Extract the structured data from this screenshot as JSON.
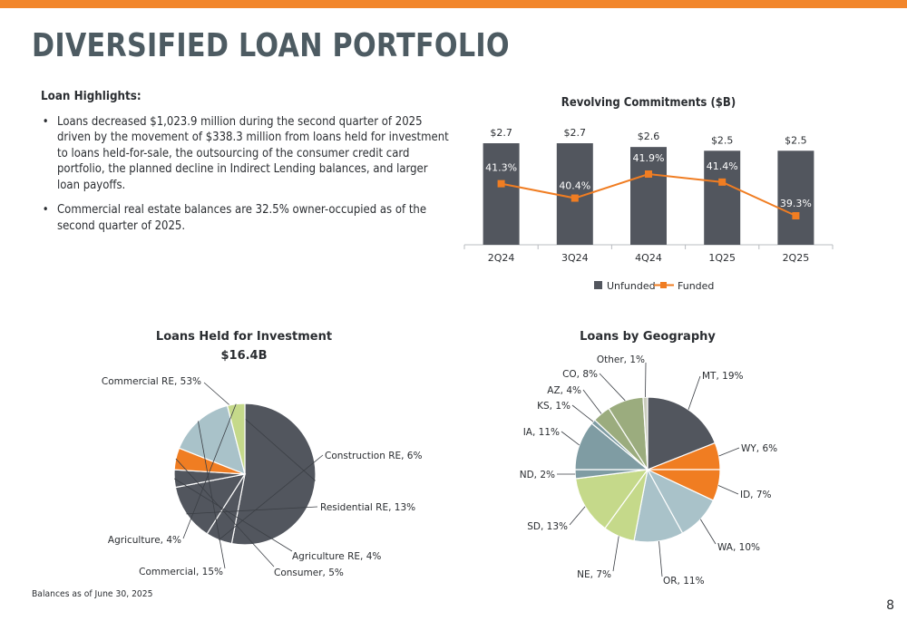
{
  "page": {
    "title": "DIVERSIFIED LOAN PORTFOLIO",
    "page_number": "8",
    "footnote": "Balances as of June 30, 2025"
  },
  "highlights": {
    "title": "Loan Highlights:",
    "bullets": [
      "Loans decreased $1,023.9 million during the second quarter of 2025 driven by the movement of $338.3 million from loans held for investment to loans held-for-sale, the outsourcing of the consumer credit card portfolio, the planned decline in Indirect Lending balances, and larger loan payoffs.",
      "Commercial real estate balances are 32.5% owner-occupied as of the second quarter of 2025."
    ]
  },
  "colors": {
    "accent": "#f2862b",
    "unfunded": "#52565e",
    "funded": "#f07d22"
  },
  "chart_data": [
    {
      "type": "bar",
      "title": "Revolving Commitments ($B)",
      "categories": [
        "2Q24",
        "3Q24",
        "4Q24",
        "1Q25",
        "2Q25"
      ],
      "series": [
        {
          "name": "Unfunded",
          "type": "bar",
          "values": [
            2.7,
            2.7,
            2.6,
            2.5,
            2.5
          ],
          "labels": [
            "$2.7",
            "$2.7",
            "$2.6",
            "$2.5",
            "$2.5"
          ]
        },
        {
          "name": "Funded",
          "type": "line",
          "values": [
            41.3,
            40.4,
            41.9,
            41.4,
            39.3
          ],
          "labels": [
            "41.3%",
            "40.4%",
            "41.9%",
            "41.4%",
            "39.3%"
          ]
        }
      ],
      "legend": "bottom",
      "grid": false
    },
    {
      "type": "pie",
      "title": "Loans Held for Investment",
      "subtitle": "$16.4B",
      "slices": [
        {
          "label": "Commercial RE, 53%",
          "value": 53,
          "color": "#52565e"
        },
        {
          "label": "Construction RE, 6%",
          "value": 6,
          "color": "#52565e"
        },
        {
          "label": "Residential RE, 13%",
          "value": 13,
          "color": "#52565e"
        },
        {
          "label": "Agriculture RE, 4%",
          "value": 4,
          "color": "#52565e"
        },
        {
          "label": "Consumer, 5%",
          "value": 5,
          "color": "#f07d22"
        },
        {
          "label": "Commercial, 15%",
          "value": 15,
          "color": "#a9c2c9"
        },
        {
          "label": "Agriculture, 4%",
          "value": 4,
          "color": "#c5d98a"
        }
      ]
    },
    {
      "type": "pie",
      "title": "Loans by Geography",
      "slices": [
        {
          "label": "MT, 19%",
          "value": 19,
          "color": "#52565e"
        },
        {
          "label": "WY, 6%",
          "value": 6,
          "color": "#f07d22"
        },
        {
          "label": "ID, 7%",
          "value": 7,
          "color": "#f07d22"
        },
        {
          "label": "WA, 10%",
          "value": 10,
          "color": "#a9c2c9"
        },
        {
          "label": "OR, 11%",
          "value": 11,
          "color": "#a9c2c9"
        },
        {
          "label": "NE, 7%",
          "value": 7,
          "color": "#c5d98a"
        },
        {
          "label": "SD, 13%",
          "value": 13,
          "color": "#c5d98a"
        },
        {
          "label": "ND, 2%",
          "value": 2,
          "color": "#7f9ca3"
        },
        {
          "label": "IA, 11%",
          "value": 11,
          "color": "#7f9ca3"
        },
        {
          "label": "KS, 1%",
          "value": 1,
          "color": "#7f9ca3"
        },
        {
          "label": "AZ, 4%",
          "value": 4,
          "color": "#9bac7e"
        },
        {
          "label": "CO, 8%",
          "value": 8,
          "color": "#9bac7e"
        },
        {
          "label": "Other, 1%",
          "value": 1,
          "color": "#c9ccbd"
        }
      ]
    }
  ]
}
